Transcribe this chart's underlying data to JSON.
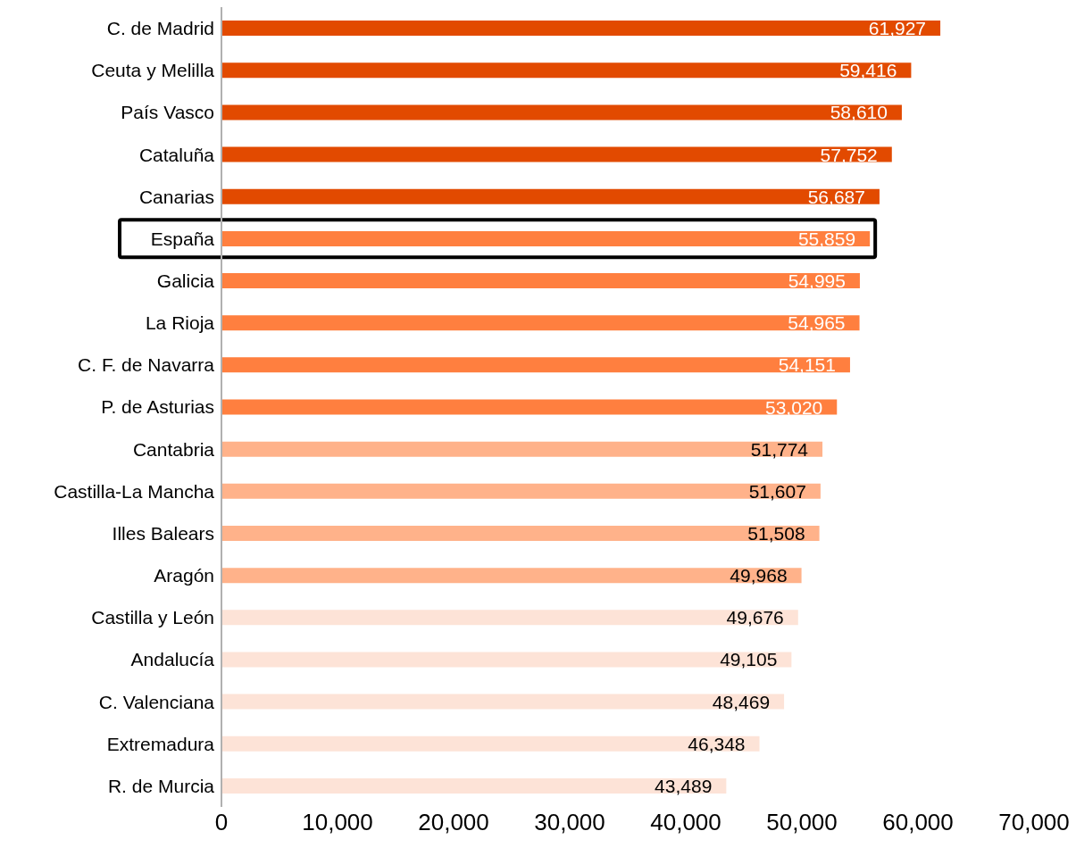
{
  "chart_data": {
    "type": "bar",
    "orientation": "horizontal",
    "categories": [
      "C. de Madrid",
      "Ceuta y Melilla",
      "País Vasco",
      "Cataluña",
      "Canarias",
      "España",
      "Galicia",
      "La Rioja",
      "C. F. de Navarra",
      "P. de Asturias",
      "Cantabria",
      "Castilla-La Mancha",
      "Illes Balears",
      "Aragón",
      "Castilla y León",
      "Andalucía",
      "C. Valenciana",
      "Extremadura",
      "R. de Murcia"
    ],
    "values": [
      61927,
      59416,
      58610,
      57752,
      56687,
      55859,
      54995,
      54965,
      54151,
      53020,
      51774,
      51607,
      51508,
      49968,
      49676,
      49105,
      48469,
      46348,
      43489
    ],
    "value_labels": [
      "61,927",
      "59,416",
      "58,610",
      "57,752",
      "56,687",
      "55,859",
      "54,995",
      "54,965",
      "54,151",
      "53,020",
      "51,774",
      "51,607",
      "51,508",
      "49,968",
      "49,676",
      "49,105",
      "48,469",
      "46,348",
      "43,489"
    ],
    "colors": [
      "#e24a00",
      "#e24a00",
      "#e24a00",
      "#e24a00",
      "#e24a00",
      "#ff7f3f",
      "#ff7f3f",
      "#ff7f3f",
      "#ff7f3f",
      "#ff7f3f",
      "#ffb28a",
      "#ffb28a",
      "#ffb28a",
      "#ffb28a",
      "#fde3d7",
      "#fde3d7",
      "#fde3d7",
      "#fde3d7",
      "#fde3d7"
    ],
    "xlim": [
      0,
      70000
    ],
    "xticks": [
      {
        "value": 0,
        "label": "0"
      },
      {
        "value": 10000,
        "label": "10,000"
      },
      {
        "value": 20000,
        "label": "20,000"
      },
      {
        "value": 30000,
        "label": "30,000"
      },
      {
        "value": 40000,
        "label": "40,000"
      },
      {
        "value": 50000,
        "label": "50,000"
      },
      {
        "value": 60000,
        "label": "60,000"
      },
      {
        "value": 70000,
        "label": "70,000"
      }
    ],
    "grid": false,
    "legend": false
  }
}
